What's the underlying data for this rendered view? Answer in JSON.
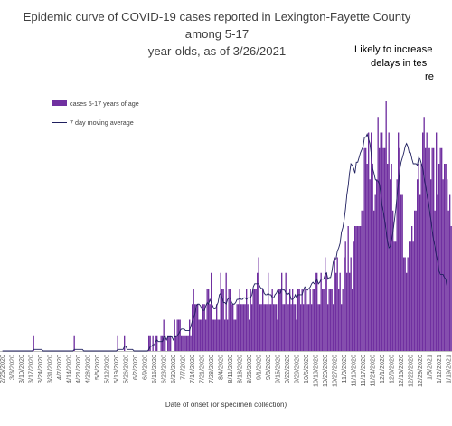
{
  "chart_data": {
    "type": "bar",
    "title": "Epidemic curve of COVID-19 cases reported in Lexington-Fayette County among 5-17 year-olds, as of 3/26/2021",
    "title_lines": [
      "Epidemic curve of COVID-19 cases reported in Lexington-Fayette County among 5-17",
      "year-olds, as of 3/26/2021"
    ],
    "xlabel": "Date of onset (or specimen collection)",
    "ylabel": "",
    "annotation": [
      "Likely to increase",
      "delays in tes",
      "re"
    ],
    "legend": {
      "placement": "top-left",
      "bar_label": "cases 5-17 years of age",
      "line_label": "7 day moving average"
    },
    "colors": {
      "bars": "#7030a0",
      "line": "#1f1f5f",
      "axis": "#bfbfbf"
    },
    "grid": false,
    "x_ticks": [
      "2/25/2020",
      "3/3/2020",
      "3/10/2020",
      "3/17/2020",
      "3/24/2020",
      "3/31/2020",
      "4/7/2020",
      "4/14/2020",
      "4/21/2020",
      "4/28/2020",
      "5/5/2020",
      "5/12/2020",
      "5/19/2020",
      "5/26/2020",
      "6/2/2020",
      "6/9/2020",
      "6/16/2020",
      "6/23/2020",
      "6/30/2020",
      "7/7/2020",
      "7/14/2020",
      "7/21/2020",
      "7/28/2020",
      "8/4/2020",
      "8/11/2020",
      "8/18/2020",
      "8/25/2020",
      "9/1/2020",
      "9/8/2020",
      "9/15/2020",
      "9/22/2020",
      "9/29/2020",
      "10/6/2020",
      "10/13/2020",
      "10/20/2020",
      "10/27/2020",
      "11/3/2020",
      "11/10/2020",
      "11/17/2020",
      "11/24/2020",
      "12/1/2020",
      "12/8/2020",
      "12/15/2020",
      "12/22/2020",
      "12/29/2020",
      "1/5/2021",
      "1/12/2021",
      "1/19/2021",
      "1/26/2021",
      "2/2/2021",
      "2/9/2021",
      "2/16/2021"
    ],
    "x_start": "2/25/2020",
    "ylim": [
      0,
      16
    ],
    "series": [
      {
        "name": "cases 5-17 years of age",
        "type": "bar",
        "values": [
          0,
          0,
          0,
          0,
          0,
          0,
          0,
          0,
          0,
          0,
          0,
          0,
          0,
          0,
          0,
          0,
          0,
          0,
          0,
          0,
          0,
          0,
          0,
          1,
          0,
          0,
          0,
          0,
          0,
          0,
          0,
          0,
          0,
          0,
          0,
          0,
          0,
          0,
          0,
          0,
          0,
          0,
          0,
          0,
          0,
          0,
          0,
          0,
          0,
          0,
          0,
          0,
          0,
          1,
          0,
          0,
          0,
          0,
          0,
          0,
          0,
          0,
          0,
          0,
          0,
          0,
          0,
          0,
          0,
          0,
          0,
          0,
          0,
          0,
          0,
          0,
          0,
          0,
          0,
          0,
          0,
          0,
          0,
          0,
          0,
          1,
          0,
          0,
          0,
          0,
          1,
          0,
          0,
          0,
          0,
          0,
          0,
          0,
          0,
          0,
          0,
          0,
          0,
          0,
          0,
          0,
          0,
          0,
          1,
          1,
          0,
          1,
          0,
          1,
          1,
          0,
          0,
          1,
          1,
          2,
          1,
          0,
          1,
          1,
          1,
          0,
          0,
          2,
          1,
          2,
          2,
          2,
          1,
          1,
          1,
          1,
          1,
          1,
          2,
          1,
          3,
          4,
          3,
          3,
          3,
          2,
          2,
          2,
          3,
          3,
          2,
          4,
          4,
          3,
          5,
          2,
          2,
          2,
          3,
          2,
          2,
          5,
          4,
          4,
          2,
          5,
          2,
          4,
          4,
          3,
          3,
          2,
          2,
          3,
          3,
          4,
          3,
          3,
          3,
          3,
          4,
          3,
          2,
          4,
          3,
          4,
          4,
          4,
          5,
          6,
          3,
          3,
          4,
          3,
          3,
          3,
          5,
          3,
          3,
          4,
          3,
          3,
          3,
          2,
          4,
          4,
          5,
          3,
          3,
          5,
          3,
          3,
          4,
          3,
          4,
          3,
          3,
          2,
          4,
          4,
          3,
          4,
          3,
          4,
          4,
          3,
          3,
          4,
          3,
          4,
          4,
          5,
          5,
          3,
          3,
          5,
          4,
          4,
          6,
          5,
          3,
          4,
          4,
          4,
          3,
          6,
          5,
          6,
          4,
          5,
          3,
          4,
          6,
          7,
          5,
          8,
          5,
          6,
          4,
          7,
          8,
          8,
          8,
          8,
          8,
          9,
          9,
          13,
          13,
          12,
          14,
          11,
          14,
          12,
          9,
          10,
          11,
          15,
          13,
          14,
          14,
          13,
          13,
          16,
          12,
          14,
          11,
          12,
          9,
          7,
          7,
          11,
          14,
          13,
          10,
          10,
          6,
          6,
          5,
          6,
          7,
          7,
          8,
          7,
          9,
          9,
          11,
          12,
          10,
          12,
          14,
          15,
          13,
          14,
          13,
          13,
          11,
          13,
          13,
          9,
          14,
          10,
          12,
          13,
          13,
          11,
          12,
          12,
          11,
          9,
          10,
          8,
          8,
          9,
          6,
          6,
          6,
          7,
          5,
          6,
          4,
          5,
          4,
          5,
          5,
          5,
          4,
          3
        ]
      },
      {
        "name": "7 day moving average",
        "type": "line",
        "values": [
          0,
          0,
          0,
          0,
          0,
          0,
          0,
          0,
          0,
          0,
          0,
          0,
          0,
          0,
          0,
          0,
          0,
          0,
          0,
          0,
          0,
          0,
          0,
          0.1,
          0.1,
          0.1,
          0.1,
          0.1,
          0.1,
          0.1,
          0,
          0,
          0,
          0,
          0,
          0,
          0,
          0,
          0,
          0,
          0,
          0,
          0,
          0,
          0,
          0,
          0,
          0,
          0,
          0,
          0,
          0,
          0,
          0.1,
          0.1,
          0.1,
          0.1,
          0.1,
          0.1,
          0.1,
          0,
          0,
          0,
          0,
          0,
          0,
          0,
          0,
          0,
          0,
          0,
          0,
          0,
          0,
          0,
          0,
          0,
          0,
          0,
          0,
          0,
          0,
          0,
          0,
          0,
          0.1,
          0.1,
          0.1,
          0.1,
          0.1,
          0.3,
          0.3,
          0.1,
          0.1,
          0.1,
          0.1,
          0.1,
          0,
          0,
          0,
          0,
          0,
          0,
          0,
          0,
          0,
          0,
          0,
          0.1,
          0.3,
          0.3,
          0.4,
          0.4,
          0.6,
          0.7,
          0.6,
          0.6,
          0.6,
          0.6,
          0.9,
          0.9,
          0.7,
          0.9,
          0.9,
          0.9,
          0.9,
          0.7,
          0.9,
          0.9,
          1,
          1.1,
          1.3,
          1.4,
          1.4,
          1.4,
          1.3,
          1.3,
          1.3,
          1.3,
          1.6,
          1.9,
          2.1,
          2.4,
          2.9,
          3,
          3,
          2.9,
          2.7,
          2.6,
          2.6,
          2.9,
          3.1,
          3,
          3.3,
          3.1,
          2.9,
          2.7,
          2.7,
          2.9,
          3.1,
          3.6,
          3.7,
          3.4,
          3.1,
          3.1,
          3,
          3.3,
          3.4,
          3.4,
          3.1,
          3,
          3,
          3.1,
          3.3,
          3.3,
          3.4,
          3.3,
          3.3,
          3.4,
          3.4,
          3.3,
          3.4,
          3.4,
          3.4,
          3.6,
          4.1,
          4.3,
          4.3,
          4.3,
          4.3,
          4.1,
          4,
          4,
          3.7,
          3.6,
          3.6,
          3.7,
          3.6,
          3.6,
          3.4,
          3.4,
          3.6,
          3.7,
          3.9,
          3.7,
          3.7,
          4,
          3.9,
          3.9,
          3.7,
          3.6,
          3.7,
          3.6,
          3.3,
          3.3,
          3.4,
          3.6,
          3.4,
          3.6,
          3.6,
          3.6,
          3.6,
          3.9,
          4.1,
          4,
          3.9,
          4,
          4.1,
          4.3,
          4.4,
          4.3,
          4.4,
          4.6,
          4.3,
          4.4,
          4.6,
          4.6,
          4.6,
          4.9,
          5,
          4.6,
          4.7,
          4.7,
          5.1,
          5.7,
          5.9,
          5.9,
          6.4,
          6.6,
          6.9,
          7.6,
          7.9,
          8.4,
          9.1,
          10,
          10.6,
          11.4,
          12,
          11.9,
          11.7,
          11.4,
          12.1,
          12.1,
          12.4,
          12.7,
          12.9,
          13.1,
          13.7,
          13.7,
          13.9,
          13.6,
          13.3,
          12.6,
          11.7,
          11.4,
          11,
          10.9,
          10.9,
          10.7,
          10.1,
          9.3,
          8.9,
          8.3,
          7.7,
          7,
          6.6,
          6.7,
          7.1,
          7.6,
          8.3,
          9,
          9.9,
          10.7,
          11.6,
          12.1,
          12.4,
          12.7,
          13.1,
          13.3,
          13.1,
          12.7,
          12.7,
          12.3,
          12,
          12,
          12,
          11.9,
          12.4,
          12.3,
          12,
          11.7,
          11.1,
          10.6,
          10.1,
          9.6,
          9,
          8.4,
          7.7,
          7.1,
          6.7,
          6.1,
          5.7,
          5.1,
          4.9,
          4.9,
          4.9,
          4.7,
          4.6,
          4.1
        ]
      }
    ]
  }
}
